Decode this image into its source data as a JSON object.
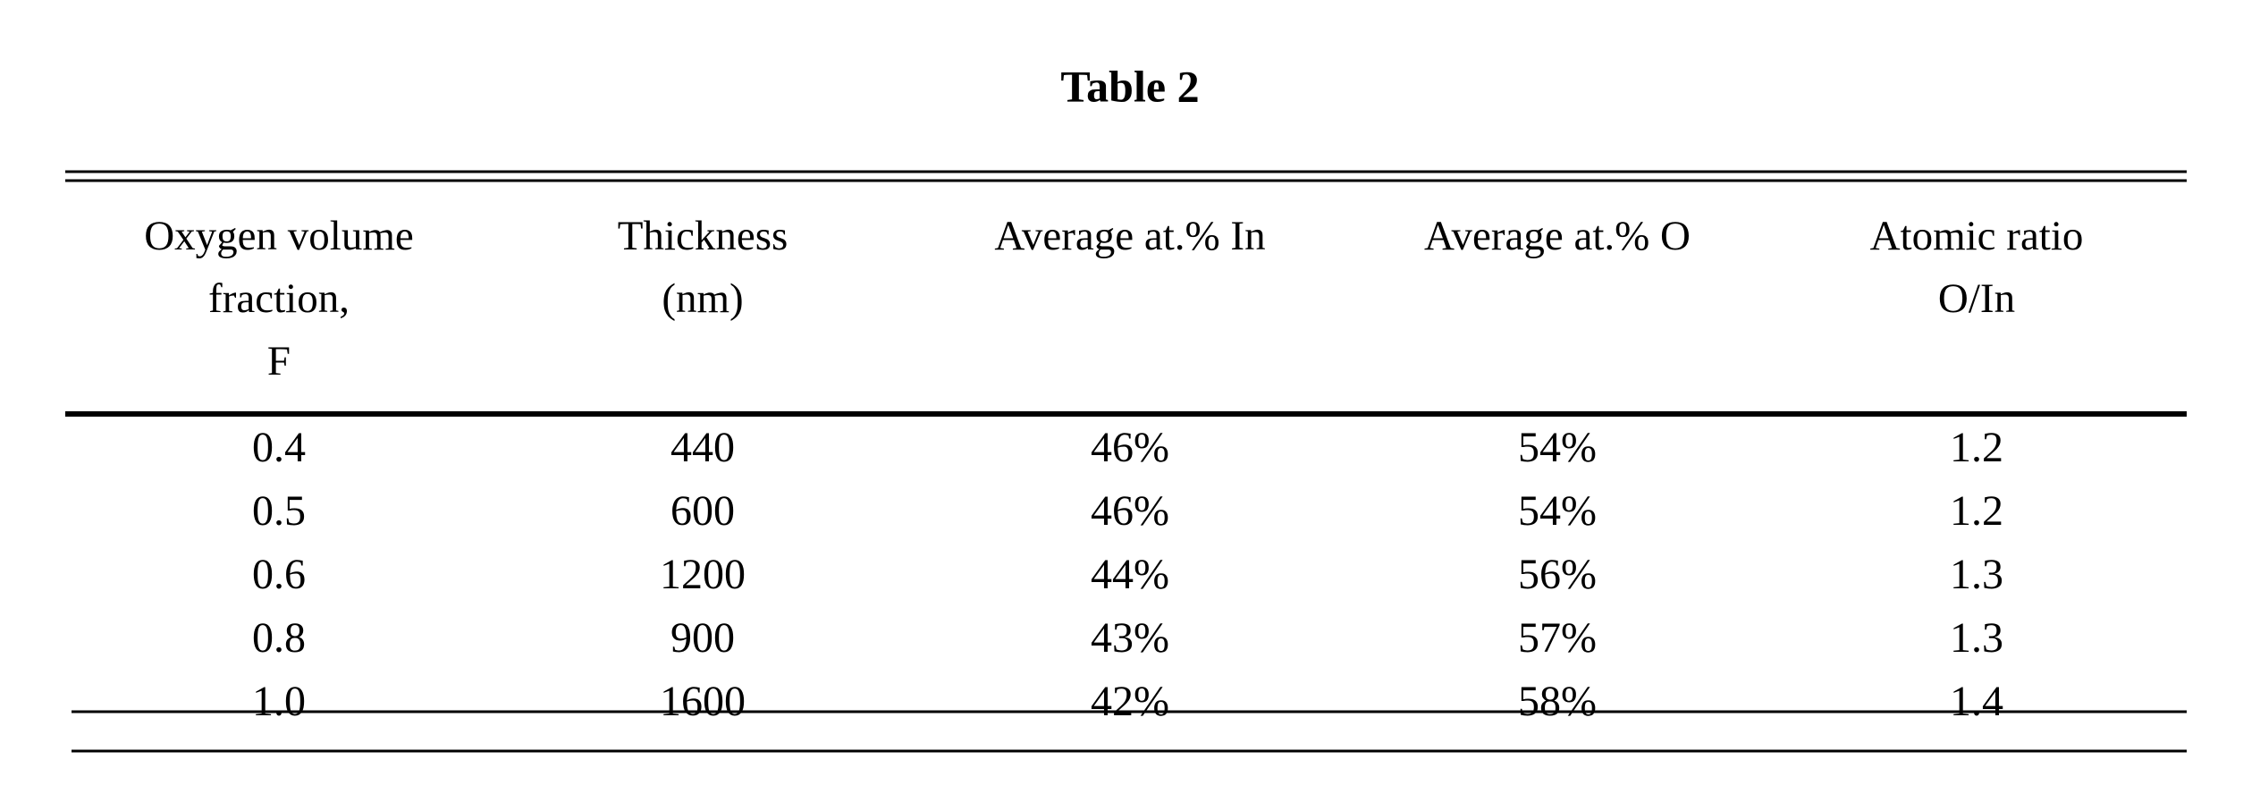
{
  "title": "Table 2",
  "table": {
    "headers": [
      [
        "Oxygen volume",
        "fraction,",
        "F"
      ],
      [
        "Thickness",
        "(nm)"
      ],
      [
        "Average at.% In"
      ],
      [
        "Average at.% O"
      ],
      [
        "Atomic ratio",
        "O/In"
      ]
    ],
    "rows": [
      [
        "0.4",
        "440",
        "46%",
        "54%",
        "1.2"
      ],
      [
        "0.5",
        "600",
        "46%",
        "54%",
        "1.2"
      ],
      [
        "0.6",
        "1200",
        "44%",
        "56%",
        "1.3"
      ],
      [
        "0.8",
        "900",
        "43%",
        "57%",
        "1.3"
      ],
      [
        "1.0",
        "1600",
        "42%",
        "58%",
        "1.4"
      ]
    ]
  }
}
